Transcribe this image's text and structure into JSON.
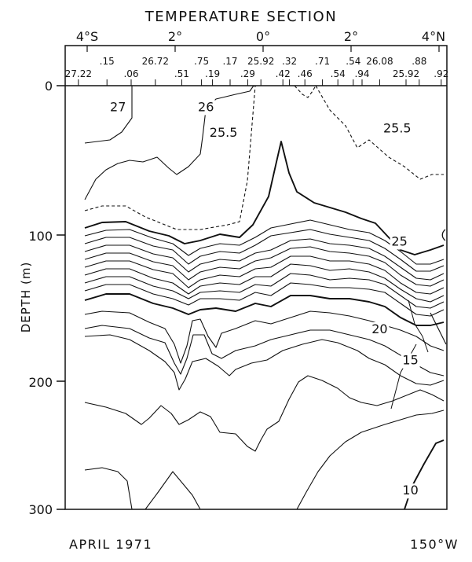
{
  "chart_data": {
    "type": "contour",
    "title": "TEMPERATURE SECTION",
    "footer_left": "APRIL 1971",
    "footer_right": "150°W",
    "ylabel": "DEPTH (m)",
    "ylim": [
      0,
      300
    ],
    "y_ticks": [
      "0",
      "100",
      "200",
      "300"
    ],
    "xlim": [
      -4.5,
      4.2
    ],
    "lat_ticks": [
      {
        "lat": -4,
        "label": "4°S"
      },
      {
        "lat": -2,
        "label": "2°"
      },
      {
        "lat": 0,
        "label": "0°"
      },
      {
        "lat": 2,
        "label": "2°"
      },
      {
        "lat": 4,
        "label": "4°N"
      }
    ],
    "surface_temps": [
      {
        "lat": -4.2,
        "label": "27.22",
        "row": 2
      },
      {
        "lat": -3.55,
        "label": ".15",
        "row": 1
      },
      {
        "lat": -3.0,
        "label": ".06",
        "row": 2
      },
      {
        "lat": -2.45,
        "label": "26.72",
        "row": 1
      },
      {
        "lat": -1.85,
        "label": ".51",
        "row": 2
      },
      {
        "lat": -1.4,
        "label": ".75",
        "row": 1
      },
      {
        "lat": -1.15,
        "label": ".19",
        "row": 2
      },
      {
        "lat": -0.75,
        "label": ".17",
        "row": 1
      },
      {
        "lat": -0.35,
        "label": ".29",
        "row": 2
      },
      {
        "lat": -0.05,
        "label": "25.92",
        "row": 1
      },
      {
        "lat": 0.45,
        "label": ".42",
        "row": 2
      },
      {
        "lat": 0.6,
        "label": ".32",
        "row": 1
      },
      {
        "lat": 0.95,
        "label": ".46",
        "row": 2
      },
      {
        "lat": 1.35,
        "label": ".71",
        "row": 1
      },
      {
        "lat": 1.7,
        "label": ".54",
        "row": 2
      },
      {
        "lat": 2.05,
        "label": ".54",
        "row": 1
      },
      {
        "lat": 2.25,
        "label": ".94",
        "row": 2
      },
      {
        "lat": 2.65,
        "label": "26.08",
        "row": 1
      },
      {
        "lat": 3.25,
        "label": "25.92",
        "row": 2
      },
      {
        "lat": 3.55,
        "label": ".88",
        "row": 1
      },
      {
        "lat": 4.05,
        "label": ".92",
        "row": 2
      }
    ],
    "contour_labels": [
      {
        "label": "27",
        "lat": -3.3,
        "depth": 18
      },
      {
        "label": "26",
        "lat": -1.3,
        "depth": 18
      },
      {
        "lat": -0.9,
        "depth": 36,
        "label": "25.5"
      },
      {
        "lat": 3.05,
        "depth": 33,
        "label": "25.5"
      },
      {
        "lat": 3.1,
        "depth": 113,
        "label": "25"
      },
      {
        "lat": 2.65,
        "depth": 175,
        "label": "20"
      },
      {
        "lat": 3.35,
        "depth": 197,
        "label": "15"
      },
      {
        "lat": 3.35,
        "depth": 289,
        "label": "10"
      }
    ]
  }
}
